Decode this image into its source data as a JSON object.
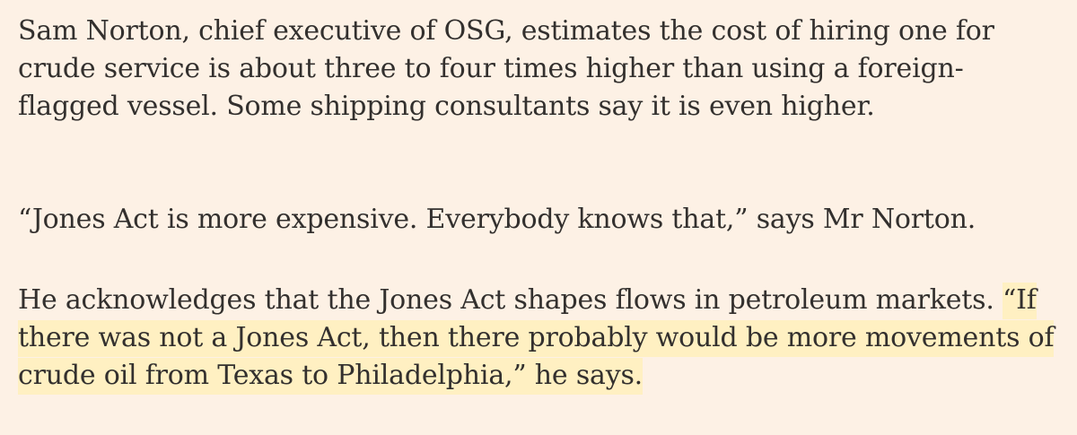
{
  "article": {
    "paragraph_1": "Sam Norton, chief executive of OSG, estimates the cost of hiring one for crude service is about three to four times higher than using a foreign-flagged vessel. Some shipping consultants say it is even higher.",
    "paragraph_2": "“Jones Act is more expensive. Everybody knows that,” says Mr Norton.",
    "paragraph_3_plain": "He acknowledges that the Jones Act shapes flows in petroleum markets. ",
    "paragraph_3_highlighted": "“If there was not a Jones Act, then there probably would be more movements of crude oil from Texas to Philadelphia,” he says."
  },
  "colors": {
    "background": "#fdf1e5",
    "text": "#33302e",
    "highlight": "#fff0c2"
  }
}
